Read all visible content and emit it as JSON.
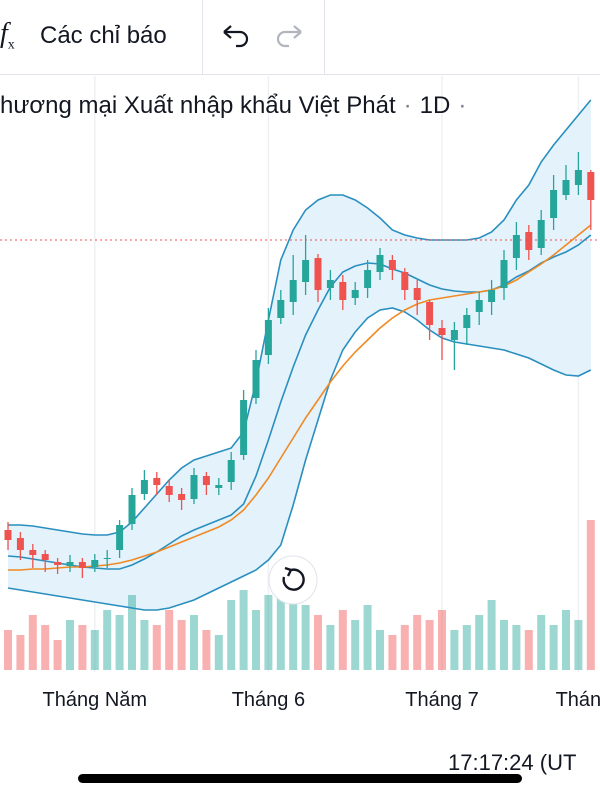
{
  "toolbar": {
    "indicators_label": "Các chỉ báo"
  },
  "header": {
    "symbol": "hương mại Xuất nhập khẩu Việt Phát",
    "interval": "1D"
  },
  "footer": {
    "time": "17:17:24 (UT"
  },
  "chart_data": {
    "type": "candlestick",
    "categories": [
      null,
      null,
      null,
      null,
      null,
      null,
      null,
      "Tháng Năm",
      null,
      null,
      null,
      null,
      null,
      null,
      null,
      null,
      null,
      null,
      null,
      null,
      null,
      "Tháng 6",
      null,
      null,
      null,
      null,
      null,
      null,
      null,
      null,
      null,
      null,
      null,
      null,
      null,
      "Tháng 7",
      null,
      null,
      null,
      null,
      null,
      null,
      null,
      null,
      null,
      null,
      "Thán",
      null
    ],
    "open": [
      170,
      162,
      150,
      146,
      138,
      134,
      138,
      133,
      141,
      150,
      176,
      206,
      222,
      214,
      206,
      201,
      224,
      212,
      218,
      245,
      302,
      345,
      382,
      398,
      418,
      442,
      412,
      418,
      402,
      412,
      428,
      440,
      428,
      412,
      398,
      372,
      360,
      372,
      388,
      398,
      412,
      442,
      468,
      452,
      482,
      505,
      515,
      528
    ],
    "high": [
      178,
      168,
      156,
      150,
      142,
      145,
      142,
      146,
      150,
      180,
      212,
      230,
      228,
      220,
      212,
      232,
      228,
      222,
      248,
      310,
      350,
      392,
      410,
      445,
      465,
      446,
      430,
      425,
      418,
      440,
      452,
      445,
      432,
      420,
      400,
      380,
      378,
      392,
      408,
      420,
      450,
      478,
      475,
      490,
      525,
      535,
      548,
      530
    ],
    "low": [
      150,
      140,
      132,
      128,
      126,
      128,
      122,
      128,
      132,
      142,
      170,
      200,
      205,
      198,
      190,
      196,
      205,
      205,
      210,
      240,
      296,
      336,
      376,
      385,
      405,
      398,
      400,
      390,
      395,
      402,
      420,
      420,
      400,
      385,
      360,
      340,
      330,
      355,
      375,
      385,
      400,
      430,
      440,
      445,
      470,
      500,
      505,
      470
    ],
    "close": [
      160,
      150,
      145,
      140,
      135,
      138,
      132,
      140,
      142,
      175,
      205,
      220,
      215,
      205,
      200,
      225,
      215,
      215,
      240,
      300,
      340,
      380,
      400,
      420,
      440,
      410,
      420,
      400,
      410,
      430,
      445,
      430,
      410,
      400,
      375,
      365,
      370,
      385,
      400,
      410,
      440,
      465,
      450,
      480,
      510,
      520,
      530,
      500
    ],
    "volume": [
      40,
      35,
      55,
      45,
      30,
      50,
      45,
      40,
      60,
      55,
      75,
      50,
      45,
      60,
      50,
      55,
      40,
      35,
      70,
      80,
      60,
      75,
      85,
      70,
      65,
      55,
      45,
      60,
      50,
      65,
      40,
      35,
      45,
      55,
      50,
      60,
      40,
      45,
      55,
      70,
      50,
      45,
      40,
      55,
      45,
      60,
      50,
      150
    ],
    "up_color": "#26a69a",
    "down_color": "#ef5350",
    "series": [
      {
        "color": "#2a8fbf",
        "values": [
          175,
          175,
          174,
          172,
          170,
          168,
          166,
          165,
          165,
          168,
          178,
          192,
          206,
          220,
          232,
          240,
          244,
          248,
          252,
          268,
          318,
          380,
          440,
          470,
          490,
          500,
          505,
          505,
          500,
          492,
          482,
          470,
          465,
          462,
          460,
          460,
          460,
          460,
          462,
          468,
          480,
          500,
          515,
          538,
          555,
          570,
          585,
          600
        ]
      },
      {
        "color": "#2a8fbf",
        "values": [
          144,
          143,
          141,
          139,
          137,
          135,
          133,
          132,
          131,
          131,
          135,
          141,
          148,
          156,
          164,
          170,
          175,
          180,
          185,
          196,
          224,
          260,
          298,
          333,
          365,
          390,
          413,
          428,
          434,
          437,
          436,
          431,
          427,
          421,
          415,
          411,
          409,
          408,
          408,
          410,
          415,
          423,
          429,
          437,
          443,
          448,
          455,
          465
        ]
      },
      {
        "color": "#2a8fbf",
        "values": [
          112,
          110,
          108,
          106,
          104,
          102,
          100,
          98,
          96,
          94,
          92,
          90,
          90,
          92,
          96,
          100,
          106,
          112,
          118,
          124,
          130,
          140,
          155,
          195,
          240,
          280,
          320,
          350,
          368,
          382,
          390,
          392,
          388,
          380,
          370,
          362,
          358,
          356,
          354,
          352,
          350,
          346,
          342,
          336,
          330,
          325,
          324,
          330
        ]
      },
      {
        "color": "#f08a24",
        "values": [
          130,
          130,
          131,
          131,
          132,
          133,
          133,
          134,
          135,
          137,
          140,
          144,
          148,
          153,
          158,
          163,
          168,
          173,
          180,
          190,
          205,
          222,
          242,
          262,
          282,
          300,
          318,
          334,
          348,
          360,
          372,
          382,
          390,
          396,
          400,
          402,
          404,
          406,
          408,
          410,
          414,
          420,
          428,
          436,
          445,
          455,
          465,
          475
        ]
      }
    ],
    "band_fill": "#e3f2fb",
    "price_line": 460,
    "price_line_color": "#ef5350"
  }
}
